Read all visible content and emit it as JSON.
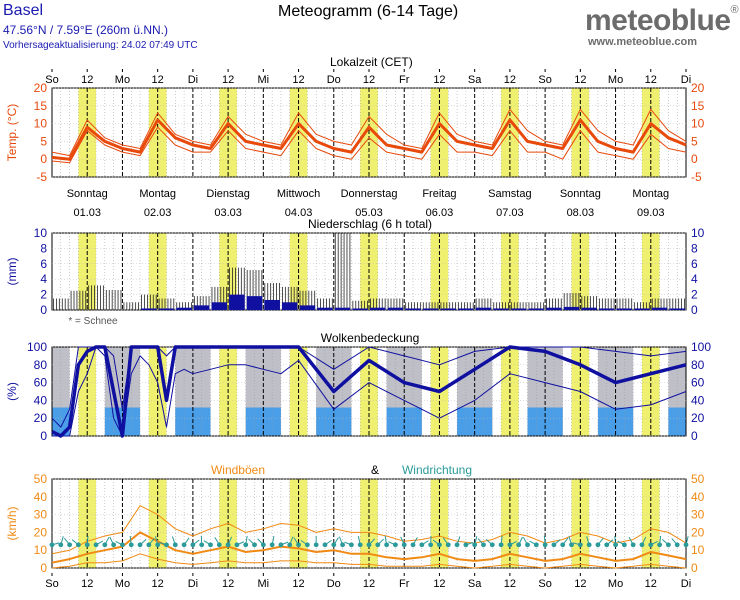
{
  "header": {
    "location": "Basel",
    "coords": "47.56°N / 7.59°E (260m ü.NN.)",
    "update": "Vorhersageaktualisierung: 24.02 07:49 UTC",
    "title": "Meteogramm (6-14 Tage)",
    "brand": "meteoblue",
    "brand_mark": "®",
    "url": "www.meteoblue.com"
  },
  "axis": {
    "top_label": "Lokalzeit (CET)",
    "ticks": [
      "So",
      "12",
      "Mo",
      "12",
      "Di",
      "12",
      "Mi",
      "12",
      "Do",
      "12",
      "Fr",
      "12",
      "Sa",
      "12",
      "So",
      "12",
      "Mo",
      "12",
      "Di"
    ]
  },
  "days": [
    {
      "name": "Sonntag",
      "date": "01.03"
    },
    {
      "name": "Montag",
      "date": "02.03"
    },
    {
      "name": "Dienstag",
      "date": "03.03"
    },
    {
      "name": "Mittwoch",
      "date": "04.03"
    },
    {
      "name": "Donnerstag",
      "date": "05.03"
    },
    {
      "name": "Freitag",
      "date": "06.03"
    },
    {
      "name": "Samstag",
      "date": "07.03"
    },
    {
      "name": "Sonntag",
      "date": "08.03"
    },
    {
      "name": "Montag",
      "date": "09.03"
    }
  ],
  "colors": {
    "temperature": "#e84a0c",
    "precip": "#1010a0",
    "cloud": "#1010a0",
    "gust": "#f08a14",
    "wind_dir": "#2a9a9a",
    "daylight": "#f0f070",
    "night_grid": "#111111"
  },
  "chart_data": [
    {
      "type": "line",
      "ylabel": "Temp. (°C)",
      "ylim": [
        -5,
        20
      ],
      "yticks": [
        -5,
        0,
        5,
        10,
        15,
        20
      ],
      "x_hours": [
        0,
        6,
        12,
        18,
        24,
        30,
        36,
        42,
        48,
        54,
        60,
        66,
        72,
        78,
        84,
        90,
        96,
        102,
        108,
        114,
        120,
        126,
        132,
        138,
        144,
        150,
        156,
        162,
        168,
        174,
        180,
        186,
        192,
        198,
        204,
        210,
        216
      ],
      "series": [
        {
          "role": "upper",
          "values": [
            2,
            1,
            11,
            6,
            4,
            3,
            13,
            7,
            5,
            4,
            12,
            7,
            5,
            4,
            13,
            7,
            5,
            4,
            12,
            7,
            4,
            3,
            13,
            7,
            5,
            4,
            14,
            8,
            5,
            4,
            14,
            8,
            5,
            4,
            14,
            8,
            5
          ]
        },
        {
          "role": "median",
          "values": [
            0.5,
            0,
            9,
            5,
            3,
            2,
            11,
            6,
            4,
            3,
            10,
            5,
            4,
            3,
            10,
            5,
            3,
            2,
            9,
            4,
            3,
            2,
            10,
            5,
            4,
            3,
            11,
            5,
            4,
            3,
            11,
            5,
            3,
            2,
            10,
            6,
            4
          ]
        },
        {
          "role": "lower",
          "values": [
            -0.5,
            -1,
            8,
            4,
            2,
            1,
            9,
            4,
            2,
            2,
            8,
            3,
            2,
            1,
            8,
            3,
            1,
            0,
            6,
            2,
            1,
            0,
            7,
            2,
            2,
            1,
            8,
            2,
            2,
            0,
            8,
            2,
            1,
            0,
            7,
            3,
            2
          ]
        }
      ]
    },
    {
      "type": "bar",
      "title": "Niederschlag (6 h total)",
      "ylabel": "(mm)",
      "ylim": [
        0,
        10
      ],
      "yticks": [
        0,
        2,
        4,
        6,
        8,
        10
      ],
      "note": "* = Schnee",
      "x_hours": [
        0,
        6,
        12,
        18,
        24,
        30,
        36,
        42,
        48,
        54,
        60,
        66,
        72,
        78,
        84,
        90,
        96,
        102,
        108,
        114,
        120,
        126,
        132,
        138,
        144,
        150,
        156,
        162,
        168,
        174,
        180,
        186,
        192,
        198,
        204,
        210
      ],
      "series": [
        {
          "role": "max",
          "values": [
            1.5,
            2.5,
            3.2,
            2.6,
            1.0,
            2.0,
            1.5,
            1.0,
            1.8,
            3.0,
            5.5,
            5.2,
            3.5,
            3.0,
            2.5,
            1.5,
            10,
            1.2,
            1.5,
            1.5,
            1.0,
            1.0,
            1.0,
            1.0,
            1.5,
            1.0,
            1.0,
            1.0,
            1.5,
            2.2,
            1.8,
            1.5,
            1.5,
            1.0,
            1.5,
            1.5
          ]
        },
        {
          "role": "median",
          "values": [
            0,
            0,
            0,
            0,
            0,
            0.2,
            0.2,
            0.3,
            0.6,
            1.0,
            2.0,
            1.8,
            1.3,
            1.0,
            0.6,
            0.3,
            0.3,
            0.2,
            0.3,
            0.3,
            0.2,
            0.2,
            0.2,
            0.2,
            0.3,
            0.2,
            0.2,
            0.2,
            0.3,
            0.4,
            0.3,
            0.2,
            0.2,
            0.2,
            0.3,
            0.2
          ]
        }
      ]
    },
    {
      "type": "line",
      "title": "Wolkenbedeckung",
      "ylabel": "(%)",
      "ylim": [
        0,
        100
      ],
      "yticks": [
        0,
        20,
        40,
        60,
        80,
        100
      ],
      "x_hours": [
        0,
        3,
        6,
        9,
        12,
        15,
        18,
        21,
        24,
        27,
        30,
        33,
        36,
        39,
        42,
        45,
        48,
        54,
        60,
        66,
        72,
        78,
        84,
        96,
        108,
        120,
        132,
        144,
        156,
        168,
        180,
        192,
        204,
        216
      ],
      "series": [
        {
          "role": "median",
          "values": [
            5,
            0,
            10,
            80,
            95,
            100,
            100,
            50,
            0,
            100,
            100,
            100,
            100,
            40,
            100,
            100,
            100,
            100,
            100,
            100,
            100,
            100,
            100,
            50,
            85,
            60,
            50,
            75,
            100,
            95,
            80,
            60,
            70,
            80
          ]
        },
        {
          "role": "upper",
          "values": [
            20,
            10,
            30,
            100,
            100,
            100,
            100,
            90,
            30,
            100,
            100,
            100,
            100,
            90,
            100,
            100,
            100,
            100,
            100,
            100,
            100,
            100,
            100,
            75,
            100,
            90,
            80,
            95,
            100,
            100,
            100,
            95,
            90,
            95
          ]
        },
        {
          "role": "lower",
          "values": [
            0,
            0,
            0,
            50,
            70,
            100,
            90,
            20,
            0,
            70,
            90,
            80,
            60,
            10,
            70,
            75,
            70,
            75,
            80,
            80,
            75,
            70,
            85,
            30,
            60,
            40,
            20,
            40,
            70,
            60,
            50,
            30,
            35,
            50
          ]
        }
      ]
    },
    {
      "type": "line",
      "title_left": "Windböen",
      "title_mid": "&",
      "title_right": "Windrichtung",
      "ylabel": "(km/h)",
      "ylim": [
        0,
        50
      ],
      "yticks": [
        0,
        10,
        20,
        30,
        40,
        50
      ],
      "x_hours": [
        0,
        6,
        12,
        18,
        24,
        30,
        36,
        42,
        48,
        54,
        60,
        66,
        72,
        78,
        84,
        90,
        96,
        102,
        108,
        114,
        120,
        126,
        132,
        138,
        144,
        150,
        156,
        162,
        168,
        174,
        180,
        186,
        192,
        198,
        204,
        210,
        216
      ],
      "series": [
        {
          "role": "upper",
          "values": [
            8,
            10,
            15,
            18,
            20,
            35,
            30,
            22,
            18,
            22,
            25,
            20,
            22,
            25,
            24,
            20,
            22,
            20,
            20,
            18,
            15,
            16,
            18,
            15,
            14,
            16,
            20,
            18,
            14,
            16,
            20,
            18,
            14,
            16,
            22,
            20,
            14
          ]
        },
        {
          "role": "median",
          "values": [
            3,
            5,
            8,
            10,
            12,
            20,
            15,
            10,
            8,
            10,
            12,
            9,
            10,
            12,
            11,
            9,
            10,
            8,
            8,
            6,
            5,
            6,
            8,
            5,
            4,
            5,
            8,
            6,
            4,
            5,
            8,
            6,
            4,
            5,
            9,
            7,
            5
          ]
        },
        {
          "role": "lower",
          "values": [
            0,
            1,
            3,
            3,
            4,
            8,
            5,
            3,
            2,
            3,
            4,
            3,
            3,
            4,
            4,
            3,
            3,
            2,
            2,
            1,
            1,
            1,
            2,
            1,
            0,
            1,
            2,
            1,
            0,
            1,
            2,
            1,
            0,
            1,
            2,
            1,
            0
          ]
        }
      ],
      "wind_dir_marker_level": 13
    }
  ]
}
